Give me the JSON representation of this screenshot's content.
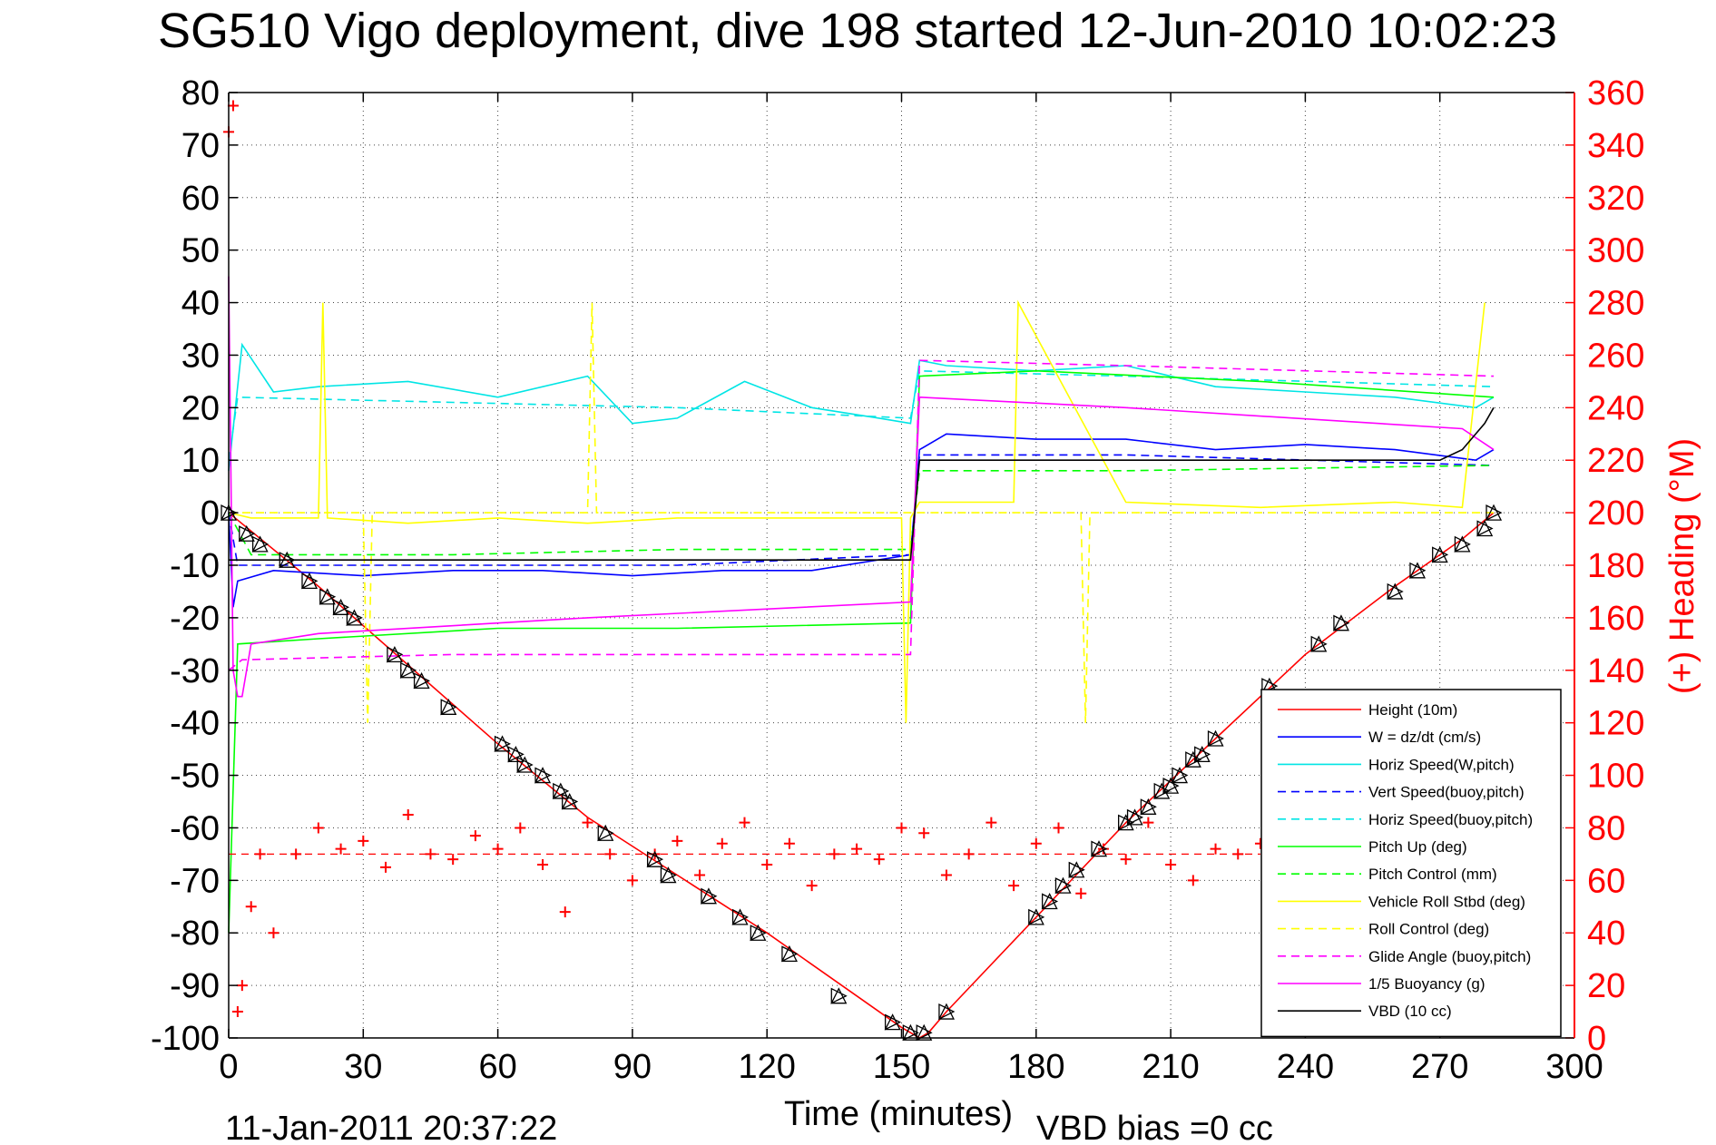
{
  "chart_data": {
    "type": "line",
    "title": "SG510 Vigo deployment, dive 198 started 12-Jun-2010 10:02:23",
    "xlabel": "Time (minutes)",
    "ylabel": "",
    "y2label": "(+) Heading (°M)",
    "xlim": [
      0,
      300
    ],
    "ylim": [
      -100,
      80
    ],
    "y2lim": [
      0,
      360
    ],
    "grid": true,
    "legend_position": "bottom-right",
    "x_ticks": [
      "0",
      "30",
      "60",
      "90",
      "120",
      "150",
      "180",
      "210",
      "240",
      "270",
      "300"
    ],
    "y_ticks": [
      "80",
      "70",
      "60",
      "50",
      "40",
      "30",
      "20",
      "10",
      "0",
      "-10",
      "-20",
      "-30",
      "-40",
      "-50",
      "-60",
      "-70",
      "-80",
      "-90",
      "-100"
    ],
    "y2_ticks": [
      "360",
      "340",
      "320",
      "300",
      "280",
      "260",
      "240",
      "220",
      "200",
      "180",
      "160",
      "140",
      "120",
      "100",
      "80",
      "60",
      "40",
      "20",
      "0"
    ],
    "series": [
      {
        "name": "Height (10m)",
        "color": "#ff0000",
        "style": "solid",
        "x": [
          0,
          20,
          40,
          60,
          80,
          100,
          120,
          140,
          150,
          154,
          156,
          160,
          180,
          200,
          220,
          240,
          260,
          275,
          282
        ],
        "y": [
          0,
          -14,
          -29,
          -44,
          -58,
          -69,
          -80,
          -92,
          -98,
          -100,
          -99,
          -95,
          -77,
          -59,
          -43,
          -27,
          -14,
          -5,
          0
        ]
      },
      {
        "name": "W = dz/dt (cm/s)",
        "color": "#0000ff",
        "style": "solid",
        "x": [
          0,
          1,
          2,
          10,
          30,
          50,
          70,
          90,
          110,
          130,
          152,
          154,
          160,
          180,
          200,
          220,
          240,
          260,
          278,
          282
        ],
        "y": [
          0,
          -18,
          -13,
          -11,
          -12,
          -11,
          -11,
          -12,
          -11,
          -11,
          -8,
          12,
          15,
          14,
          14,
          12,
          13,
          12,
          10,
          12
        ]
      },
      {
        "name": "Horiz Speed(W,pitch)",
        "color": "#00e5e5",
        "style": "solid",
        "x": [
          0,
          3,
          10,
          20,
          40,
          60,
          80,
          90,
          100,
          115,
          130,
          145,
          152,
          154,
          160,
          180,
          200,
          220,
          240,
          260,
          278,
          282
        ],
        "y": [
          8,
          32,
          23,
          24,
          25,
          22,
          26,
          17,
          18,
          25,
          20,
          18,
          17,
          29,
          28,
          27,
          28,
          24,
          23,
          22,
          20,
          22
        ]
      },
      {
        "name": "Vert Speed(buoy,pitch)",
        "color": "#0000ff",
        "style": "dashed",
        "x": [
          0,
          2,
          50,
          100,
          152,
          154,
          200,
          282
        ],
        "y": [
          0,
          -10,
          -10,
          -10,
          -8,
          11,
          11,
          9
        ]
      },
      {
        "name": "Horiz Speed(buoy,pitch)",
        "color": "#00e5e5",
        "style": "dashed",
        "x": [
          0,
          2,
          50,
          100,
          152,
          154,
          200,
          282
        ],
        "y": [
          10,
          22,
          21,
          20,
          18,
          27,
          26,
          24
        ]
      },
      {
        "name": "Pitch Up (deg)",
        "color": "#00ff00",
        "style": "solid",
        "x": [
          0,
          2,
          20,
          60,
          100,
          152,
          154,
          180,
          230,
          282
        ],
        "y": [
          -80,
          -25,
          -24,
          -22,
          -22,
          -21,
          26,
          27,
          25,
          22
        ]
      },
      {
        "name": "Pitch Control (mm)",
        "color": "#00ff00",
        "style": "dashed",
        "x": [
          0,
          5,
          50,
          100,
          152,
          154,
          200,
          282
        ],
        "y": [
          0,
          -8,
          -8,
          -7,
          -7,
          8,
          8,
          9
        ]
      },
      {
        "name": "Vehicle Roll Stbd (deg)",
        "color": "#ffff00",
        "style": "solid",
        "x": [
          0,
          5,
          20,
          21,
          22,
          40,
          60,
          80,
          100,
          150,
          151,
          152,
          154,
          175,
          176,
          200,
          230,
          260,
          275,
          280
        ],
        "y": [
          0,
          -1,
          -1,
          40,
          -1,
          -2,
          -1,
          -2,
          -1,
          -1,
          -40,
          -1,
          2,
          2,
          40,
          2,
          1,
          2,
          1,
          40
        ]
      },
      {
        "name": "Roll Control (deg)",
        "color": "#ffff00",
        "style": "dashed",
        "x": [
          0,
          5,
          30,
          31,
          32,
          80,
          81,
          82,
          152,
          154,
          190,
          191,
          192,
          282
        ],
        "y": [
          0,
          0,
          0,
          -40,
          0,
          0,
          40,
          0,
          0,
          0,
          0,
          -40,
          0,
          0
        ]
      },
      {
        "name": "Glide Angle (buoy,pitch)",
        "color": "#ff00ff",
        "style": "dashed",
        "x": [
          0,
          3,
          50,
          100,
          152,
          154,
          200,
          282
        ],
        "y": [
          -30,
          -28,
          -27,
          -27,
          -27,
          29,
          28,
          26
        ]
      },
      {
        "name": "1/5 Buoyancy (g)",
        "color": "#ff00ff",
        "style": "solid",
        "x": [
          0,
          1,
          2,
          3,
          5,
          20,
          80,
          152,
          154,
          200,
          275,
          282
        ],
        "y": [
          45,
          -30,
          -35,
          -35,
          -25,
          -23,
          -20,
          -17,
          22,
          20,
          16,
          12
        ]
      },
      {
        "name": "VBD (10 cc)",
        "color": "#000000",
        "style": "solid",
        "x": [
          0,
          1,
          2,
          152,
          154,
          270,
          275,
          280,
          282
        ],
        "y": [
          -9,
          -9,
          -9,
          -9,
          10,
          10,
          12,
          17,
          20
        ]
      }
    ],
    "heading_series": {
      "name": "Heading",
      "color": "#ff0000",
      "marker": "+",
      "axis": "right",
      "reference_line_y": 70,
      "x": [
        0,
        1,
        2,
        3,
        5,
        7,
        10,
        15,
        20,
        25,
        30,
        35,
        40,
        45,
        50,
        55,
        60,
        65,
        70,
        75,
        80,
        85,
        90,
        95,
        100,
        105,
        110,
        115,
        120,
        125,
        130,
        135,
        140,
        145,
        150,
        155,
        160,
        165,
        170,
        175,
        180,
        185,
        190,
        195,
        200,
        205,
        210,
        215,
        220,
        225,
        230
      ],
      "y": [
        345,
        355,
        10,
        20,
        50,
        70,
        40,
        70,
        80,
        72,
        75,
        65,
        85,
        70,
        68,
        77,
        72,
        80,
        66,
        48,
        82,
        70,
        60,
        70,
        75,
        62,
        74,
        82,
        66,
        74,
        58,
        70,
        72,
        68,
        80,
        78,
        62,
        70,
        82,
        58,
        74,
        80,
        55,
        72,
        68,
        82,
        66,
        60,
        72,
        70,
        74
      ]
    },
    "triangle_markers": {
      "color": "#000000",
      "x": [
        0,
        4,
        7,
        13,
        18,
        22,
        25,
        28,
        37,
        40,
        43,
        49,
        61,
        64,
        66,
        70,
        74,
        76,
        84,
        95,
        98,
        107,
        114,
        118,
        125,
        136,
        148,
        152,
        155,
        160,
        180,
        183,
        186,
        189,
        194,
        200,
        202,
        205,
        208,
        210,
        212,
        215,
        217,
        220,
        232,
        243,
        248,
        260,
        265,
        270,
        275,
        280,
        282
      ],
      "y": [
        0,
        -4,
        -6,
        -9,
        -13,
        -16,
        -18,
        -20,
        -27,
        -30,
        -32,
        -37,
        -44,
        -46,
        -48,
        -50,
        -53,
        -55,
        -61,
        -66,
        -69,
        -73,
        -77,
        -80,
        -84,
        -92,
        -97,
        -99,
        -99,
        -95,
        -77,
        -74,
        -71,
        -68,
        -64,
        -59,
        -58,
        -56,
        -53,
        -52,
        -50,
        -47,
        -46,
        -43,
        -33,
        -25,
        -21,
        -15,
        -11,
        -8,
        -6,
        -3,
        0
      ]
    }
  },
  "footer": {
    "timestamp": "11-Jan-2011 20:37:22",
    "vbd_bias": "VBD bias =0 cc"
  }
}
